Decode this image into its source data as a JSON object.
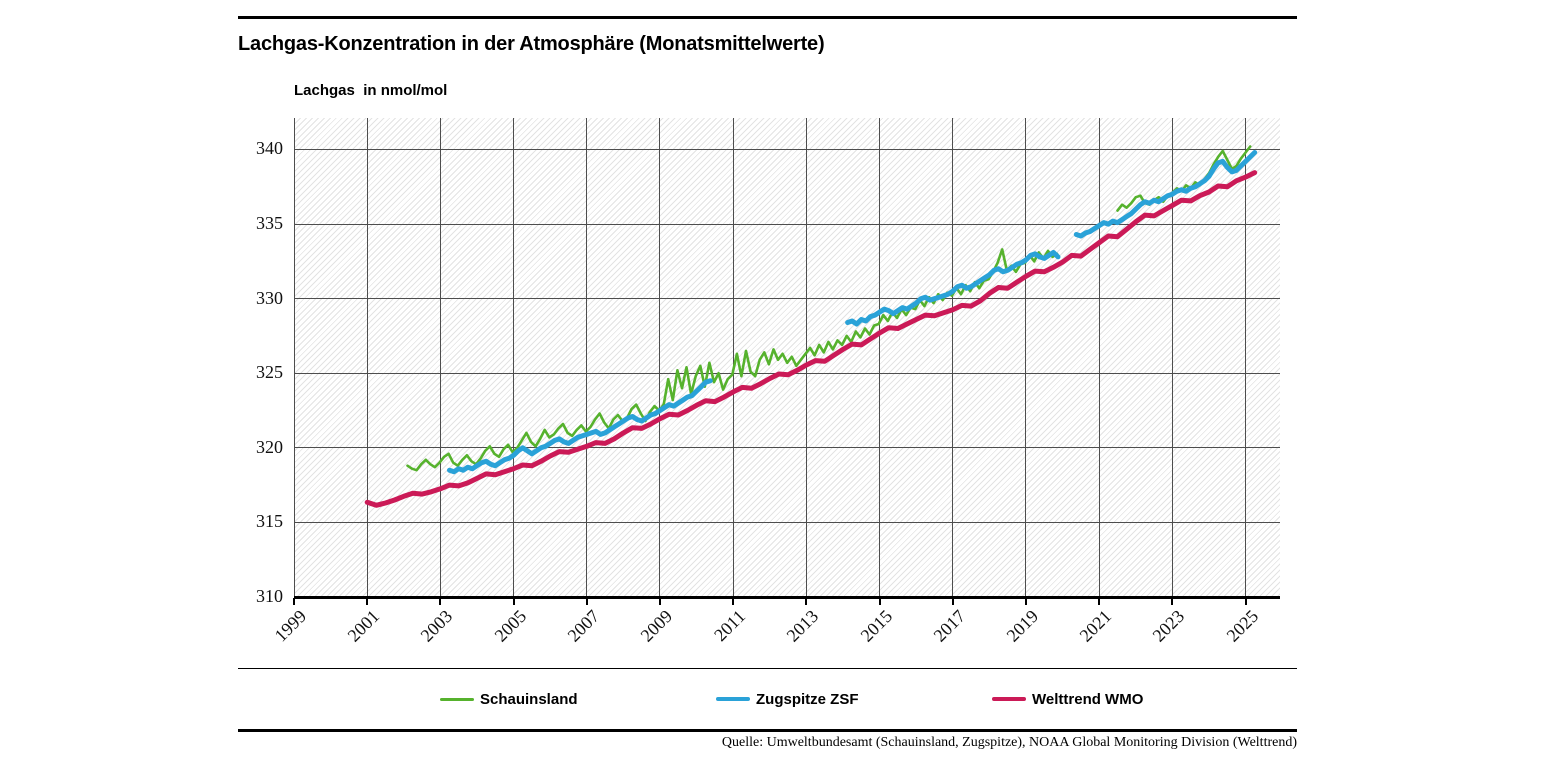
{
  "header": {
    "title": "Lachgas-Konzentration in der Atmosphäre (Monatsmittelwerte)"
  },
  "footer": {
    "source": "Quelle: Umweltbundesamt (Schauinsland, Zugspitze),  NOAA Global Monitoring Division (Welttrend)"
  },
  "chart_data": {
    "type": "line",
    "title": "Lachgas-Konzentration in der Atmosphäre (Monatsmittelwerte)",
    "ylabel": "Lachgas  in nmol/mol",
    "xlabel": "",
    "unit": "nmol/mol",
    "grid": "both",
    "background_hatch": "light-gray diagonal",
    "gridline_color": "#4d4d4d",
    "legend_position": "bottom",
    "x_axis": {
      "min": 1999,
      "max": 2025.94,
      "ticks": [
        1999,
        2001,
        2003,
        2005,
        2007,
        2009,
        2011,
        2013,
        2015,
        2017,
        2019,
        2021,
        2023,
        2025
      ]
    },
    "y_axis": {
      "min": 310,
      "max": 342.11,
      "ticks": [
        310,
        315,
        320,
        325,
        330,
        335,
        340
      ]
    },
    "series": [
      {
        "name": "Schauinsland",
        "color": "#56b22d",
        "width": 2.6,
        "segments": [
          {
            "start": 2002.1,
            "step": 0.125,
            "values": [
              318.8,
              318.6,
              318.5,
              318.9,
              319.2,
              318.9,
              318.7,
              319.0,
              319.4,
              319.6,
              319.0,
              318.8,
              319.2,
              319.5,
              319.1,
              318.9,
              319.3,
              319.8,
              320.1,
              319.6,
              319.4,
              319.9,
              320.2,
              319.7,
              320.0,
              320.5,
              321.0,
              320.4,
              320.1,
              320.6,
              321.2,
              320.7,
              320.9,
              321.3,
              321.6,
              321.0,
              320.8,
              321.2,
              321.5,
              321.1,
              321.4,
              321.9,
              322.3,
              321.7,
              321.3,
              321.9,
              322.2,
              321.8,
              322.0,
              322.6,
              322.9,
              322.3,
              321.8,
              322.4,
              322.8,
              322.5,
              322.9,
              324.6,
              323.2,
              325.2,
              324.0,
              325.4,
              323.6,
              324.8,
              325.5,
              324.1,
              325.7,
              324.4,
              325.0,
              323.9,
              324.6,
              324.9,
              326.3,
              324.8,
              326.5,
              325.1,
              324.8,
              325.9,
              326.4,
              325.6,
              326.6,
              325.9,
              326.3,
              325.7,
              326.1,
              325.5,
              325.9,
              326.3,
              326.7,
              326.2,
              326.9,
              326.4,
              327.1,
              326.6,
              327.2,
              326.9,
              327.5,
              327.1,
              327.8,
              327.4,
              328.0,
              327.6,
              328.2,
              328.3,
              328.9,
              328.5,
              329.1,
              328.7,
              329.3,
              328.9,
              329.4,
              329.3,
              329.9,
              329.5,
              330.1,
              329.7,
              330.3,
              329.9,
              330.4,
              330.2,
              330.7,
              330.3,
              330.9,
              330.5,
              331.1,
              330.7,
              331.2,
              331.3,
              331.8,
              332.4,
              333.3,
              331.9,
              332.2,
              331.8,
              332.3,
              332.4,
              332.9,
              332.5,
              333.1,
              332.7,
              333.2,
              332.8,
              333.0
            ]
          },
          {
            "start": 2021.5,
            "step": 0.125,
            "values": [
              335.9,
              336.3,
              336.1,
              336.4,
              336.8,
              336.9,
              336.4,
              336.3,
              336.6,
              336.8,
              336.5,
              336.9,
              337.1,
              337.4,
              337.2,
              337.6,
              337.4,
              337.8,
              337.6,
              338.0,
              338.4,
              339.0,
              339.5,
              339.9,
              339.3,
              338.7,
              338.9,
              339.4,
              339.8,
              340.2
            ]
          }
        ]
      },
      {
        "name": "Zugspitze ZSF",
        "color": "#2aa2d8",
        "width": 5,
        "segments": [
          {
            "start": 2003.25,
            "step": 0.125,
            "values": [
              318.5,
              318.4,
              318.6,
              318.5,
              318.7,
              318.6,
              318.8,
              319.0,
              319.1,
              318.9,
              318.8,
              319.0,
              319.2,
              319.3,
              319.5,
              319.8,
              320.0,
              319.8,
              319.6,
              319.8,
              320.0,
              320.1,
              320.3,
              320.5,
              320.6,
              320.4,
              320.3,
              320.5,
              320.7,
              320.8,
              320.9,
              321.0,
              321.1,
              320.9,
              321.0,
              321.2,
              321.4,
              321.6,
              321.8,
              322.0,
              322.1,
              321.9,
              321.8,
              322.0,
              322.2,
              322.3,
              322.5,
              322.7,
              322.9,
              322.8,
              323.0,
              323.2,
              323.4,
              323.5,
              323.8,
              324.1,
              324.4,
              324.5
            ]
          },
          {
            "start": 2014.125,
            "step": 0.125,
            "values": [
              328.4,
              328.5,
              328.3,
              328.6,
              328.5,
              328.8,
              328.9,
              329.1,
              329.3,
              329.2,
              329.0,
              329.2,
              329.4,
              329.3,
              329.5,
              329.7,
              330.0,
              330.1,
              329.9,
              330.0,
              330.1,
              330.2,
              330.3,
              330.5,
              330.8,
              330.9,
              330.7,
              330.8,
              331.0,
              331.2,
              331.4,
              331.6,
              331.9,
              332.0,
              331.8,
              331.9,
              332.1,
              332.3,
              332.4,
              332.6,
              332.9,
              333.0,
              332.8,
              332.7,
              332.9,
              333.1,
              332.8
            ]
          },
          {
            "start": 2020.375,
            "step": 0.125,
            "values": [
              334.3,
              334.2,
              334.4,
              334.5,
              334.7,
              334.9,
              335.1,
              335.0,
              335.2,
              335.1,
              335.3,
              335.5,
              335.7,
              336.0,
              336.3,
              336.5,
              336.4,
              336.6,
              336.5,
              336.7,
              336.9,
              337.0,
              337.2,
              337.3,
              337.2,
              337.4,
              337.5,
              337.7,
              337.9,
              338.2,
              338.7,
              339.1,
              339.2,
              338.8,
              338.5,
              338.6,
              338.9,
              339.2,
              339.5,
              339.8
            ]
          }
        ]
      },
      {
        "name": "Welttrend WMO",
        "color": "#cb1a57",
        "width": 5,
        "segments": [
          {
            "start": 2001.0,
            "step": 0.25,
            "values": [
              316.35,
              316.15,
              316.3,
              316.5,
              316.75,
              316.95,
              316.9,
              317.05,
              317.25,
              317.5,
              317.45,
              317.65,
              317.95,
              318.25,
              318.2,
              318.4,
              318.6,
              318.85,
              318.8,
              319.1,
              319.45,
              319.75,
              319.7,
              319.9,
              320.1,
              320.35,
              320.3,
              320.6,
              321.0,
              321.35,
              321.3,
              321.6,
              321.95,
              322.25,
              322.2,
              322.5,
              322.85,
              323.15,
              323.1,
              323.4,
              323.75,
              324.05,
              324.0,
              324.3,
              324.65,
              324.95,
              324.9,
              325.2,
              325.55,
              325.85,
              325.8,
              326.2,
              326.6,
              326.95,
              326.9,
              327.3,
              327.7,
              328.05,
              328.0,
              328.3,
              328.6,
              328.9,
              328.85,
              329.05,
              329.25,
              329.55,
              329.5,
              329.85,
              330.35,
              330.75,
              330.7,
              331.1,
              331.5,
              331.85,
              331.8,
              332.1,
              332.45,
              332.9,
              332.85,
              333.3,
              333.75,
              334.2,
              334.15,
              334.65,
              335.15,
              335.6,
              335.55,
              335.9,
              336.25,
              336.6,
              336.55,
              336.9,
              337.15,
              337.55,
              337.5,
              337.9,
              338.15,
              338.45
            ]
          }
        ]
      }
    ]
  }
}
